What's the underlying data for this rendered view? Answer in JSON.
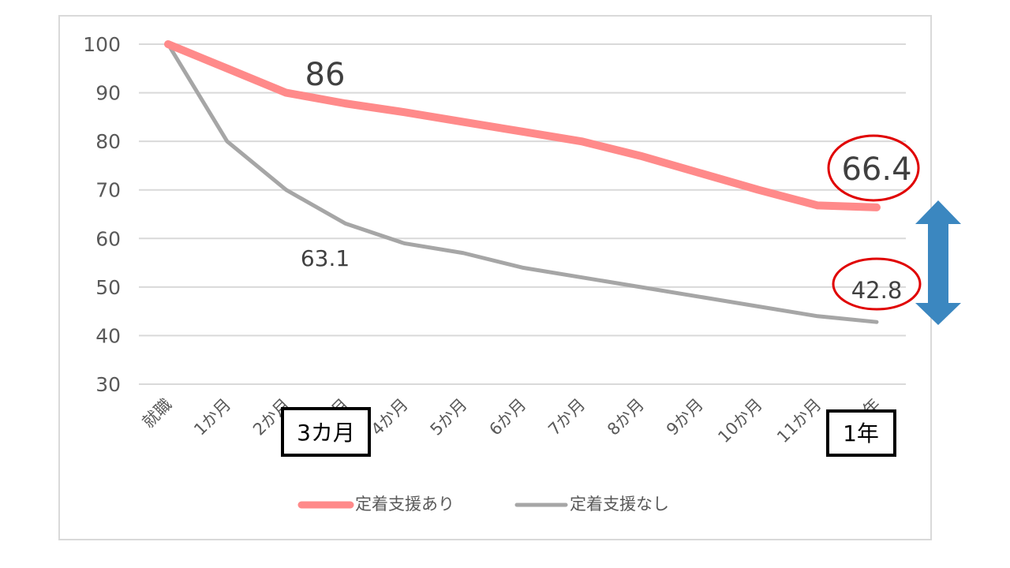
{
  "chart_data": {
    "type": "line",
    "categories": [
      "就職",
      "1か月",
      "2か月",
      "3か月",
      "4か月",
      "5か月",
      "6か月",
      "7か月",
      "8か月",
      "9か月",
      "10か月",
      "11か月",
      "1年"
    ],
    "series": [
      {
        "name": "定着支援あり",
        "values": [
          100,
          95,
          90,
          87.8,
          86,
          84,
          82,
          80,
          77,
          73.5,
          70,
          66.8,
          66.4
        ]
      },
      {
        "name": "定着支援なし",
        "values": [
          100,
          80,
          70,
          63.1,
          59,
          57,
          54,
          52,
          50,
          48,
          46,
          44,
          42.8
        ]
      }
    ],
    "title": "",
    "xlabel": "",
    "ylabel": "",
    "ylim": [
      30,
      100
    ],
    "yticks": [
      30,
      40,
      50,
      60,
      70,
      80,
      90,
      100
    ],
    "grid": true,
    "legend": "bottom",
    "colors": {
      "with_support": "#ff8a8a",
      "without_support": "#a6a6a6",
      "highlight": "#e00000",
      "arrow": "#3b87c0"
    },
    "annotations": {
      "point_86": "86",
      "point_63_1": "63.1",
      "end_with": "66.4",
      "end_without": "42.8",
      "box_3months": "3カ月",
      "box_1year": "1年"
    }
  }
}
